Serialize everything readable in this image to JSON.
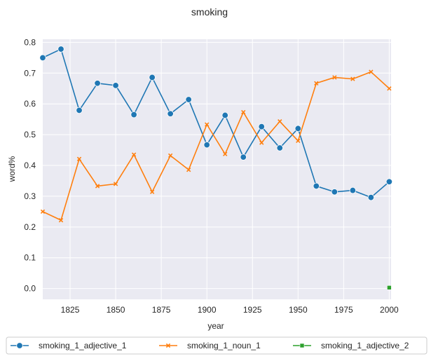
{
  "chart_data": {
    "type": "line",
    "title": "smoking",
    "xlabel": "year",
    "ylabel": "word%",
    "xlim": [
      1810,
      2001
    ],
    "ylim": [
      -0.035,
      0.81
    ],
    "xticks": [
      1825,
      1850,
      1875,
      1900,
      1925,
      1950,
      1975,
      2000
    ],
    "yticks": [
      0.0,
      0.1,
      0.2,
      0.3,
      0.4,
      0.5,
      0.6,
      0.7,
      0.8
    ],
    "ytick_labels": [
      "0.0",
      "0.1",
      "0.2",
      "0.3",
      "0.4",
      "0.5",
      "0.6",
      "0.7",
      "0.8"
    ],
    "grid": true,
    "legend_position": "bottom-center",
    "series": [
      {
        "name": "smoking_1_adjective_1",
        "color": "#1f77b4",
        "marker": "circle",
        "x": [
          1810,
          1820,
          1830,
          1840,
          1850,
          1860,
          1870,
          1880,
          1890,
          1900,
          1910,
          1920,
          1930,
          1940,
          1950,
          1960,
          1970,
          1980,
          1990,
          2000
        ],
        "y": [
          0.75,
          0.778,
          0.579,
          0.667,
          0.66,
          0.565,
          0.686,
          0.568,
          0.614,
          0.467,
          0.563,
          0.427,
          0.526,
          0.457,
          0.52,
          0.333,
          0.314,
          0.319,
          0.296,
          0.347
        ]
      },
      {
        "name": "smoking_1_noun_1",
        "color": "#ff7f0e",
        "marker": "x",
        "x": [
          1810,
          1820,
          1830,
          1840,
          1850,
          1860,
          1870,
          1880,
          1890,
          1900,
          1910,
          1920,
          1930,
          1940,
          1950,
          1960,
          1970,
          1980,
          1990,
          2000
        ],
        "y": [
          0.25,
          0.222,
          0.421,
          0.333,
          0.34,
          0.435,
          0.314,
          0.432,
          0.386,
          0.533,
          0.437,
          0.573,
          0.474,
          0.543,
          0.48,
          0.667,
          0.686,
          0.681,
          0.704,
          0.65
        ]
      },
      {
        "name": "smoking_1_adjective_2",
        "color": "#2ca02c",
        "marker": "square",
        "x": [
          2000
        ],
        "y": [
          0.003
        ]
      }
    ]
  }
}
